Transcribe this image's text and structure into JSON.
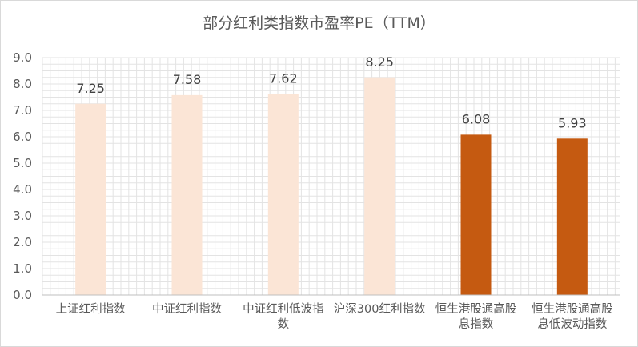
{
  "chart_data": {
    "type": "bar",
    "title": "部分红利类指数市盈率PE（TTM）",
    "categories": [
      [
        "上证红利指数"
      ],
      [
        "中证红利指数"
      ],
      [
        "中证红利低波指",
        "数"
      ],
      [
        "沪深300红利指数"
      ],
      [
        "恒生港股通高股",
        "息指数"
      ],
      [
        "恒生港股通高股",
        "息低波动指数"
      ]
    ],
    "values": [
      7.25,
      7.58,
      7.62,
      8.25,
      6.08,
      5.93
    ],
    "value_labels": [
      "7.25",
      "7.58",
      "7.62",
      "8.25",
      "6.08",
      "5.93"
    ],
    "ylim": [
      0,
      9
    ],
    "yticks": [
      "0.0",
      "1.0",
      "2.0",
      "3.0",
      "4.0",
      "5.0",
      "6.0",
      "7.0",
      "8.0",
      "9.0"
    ],
    "grid": true,
    "colors": {
      "light_bar": "#fbe5d6",
      "dark_bar": "#c55a11",
      "grid": "#e3e3e3",
      "axis": "#bfbfbf"
    },
    "bar_color_keys": [
      "light_bar",
      "light_bar",
      "light_bar",
      "light_bar",
      "dark_bar",
      "dark_bar"
    ]
  }
}
